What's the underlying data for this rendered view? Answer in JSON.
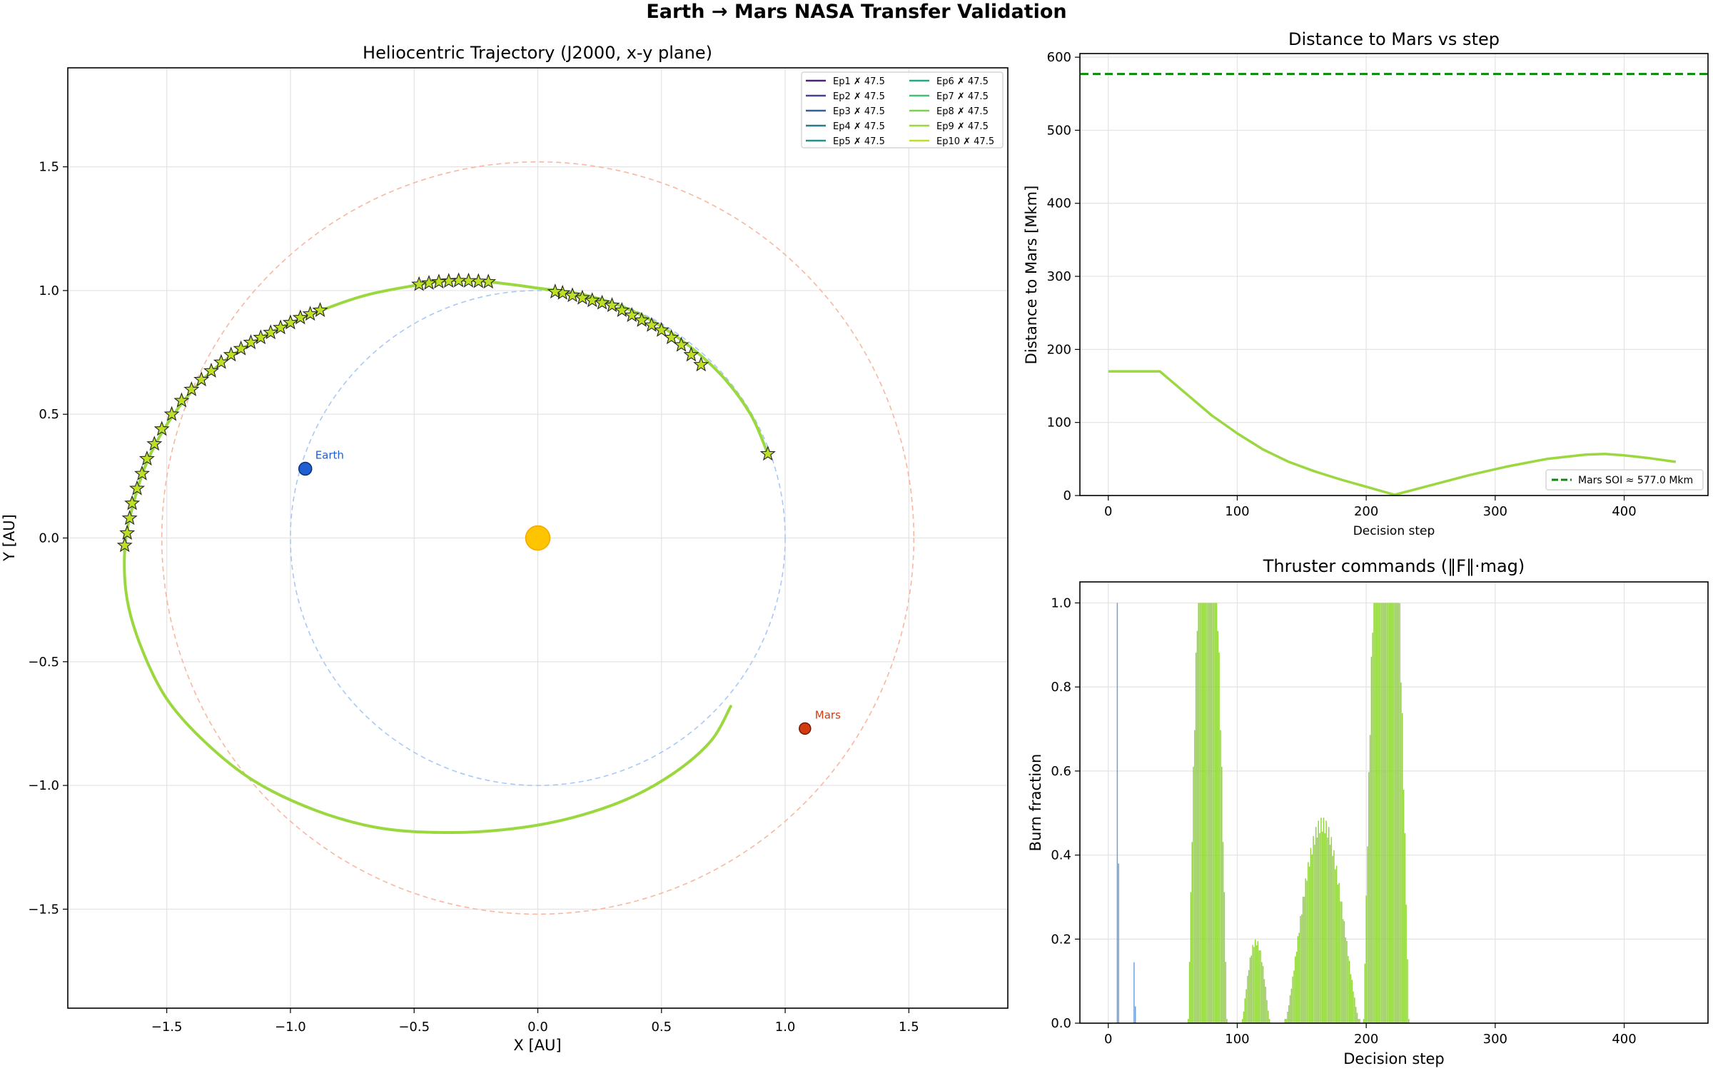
{
  "figure": {
    "suptitle": "Earth → Mars NASA Transfer Validation"
  },
  "colors": {
    "trajectory": "#9bd83f",
    "earth_orbit": "#a9c8f5",
    "mars_orbit": "#f7b7a0",
    "sun": "#ffc400",
    "earth": "#1f5fd1",
    "mars": "#d23a10",
    "soi": "#0a8a0a",
    "burn_blue": "#6a9ed8",
    "burn_green": "#8fd23a"
  },
  "chart_data": [
    {
      "id": "trajectory",
      "type": "line",
      "title": "Heliocentric Trajectory  (J2000, x-y plane)",
      "xlabel": "X  [AU]",
      "ylabel": "Y  [AU]",
      "xlim": [
        -1.9,
        1.9
      ],
      "ylim": [
        -1.9,
        1.9
      ],
      "xticks": [
        -1.5,
        -1.0,
        -0.5,
        0.0,
        0.5,
        1.0,
        1.5
      ],
      "yticks": [
        -1.5,
        -1.0,
        -0.5,
        0.0,
        0.5,
        1.0,
        1.5
      ],
      "grid": true,
      "legend_placement": "top-right",
      "legend": [
        {
          "label": "Ep1 ✗  47.5",
          "color": "#482475"
        },
        {
          "label": "Ep2 ✗  47.5",
          "color": "#414487"
        },
        {
          "label": "Ep3 ✗  47.5",
          "color": "#355f8d"
        },
        {
          "label": "Ep4 ✗  47.5",
          "color": "#2a788e"
        },
        {
          "label": "Ep5 ✗  47.5",
          "color": "#21918c"
        },
        {
          "label": "Ep6 ✗  47.5",
          "color": "#22a884"
        },
        {
          "label": "Ep7 ✗  47.5",
          "color": "#44bf70"
        },
        {
          "label": "Ep8 ✗  47.5",
          "color": "#7ad151"
        },
        {
          "label": "Ep9 ✗  47.5",
          "color": "#9bd83f"
        },
        {
          "label": "Ep10 ✗  47.5",
          "color": "#bddf26"
        }
      ],
      "earth_orbit_radius": 1.0,
      "mars_orbit_radius": 1.52,
      "sun": {
        "x": 0.0,
        "y": 0.0
      },
      "earth": {
        "x": -0.94,
        "y": 0.28,
        "label": "Earth"
      },
      "mars": {
        "x": 1.08,
        "y": -0.77,
        "label": "Mars"
      },
      "path": [
        {
          "x": 0.93,
          "y": 0.34
        },
        {
          "x": 0.86,
          "y": 0.5
        },
        {
          "x": 0.74,
          "y": 0.66
        },
        {
          "x": 0.58,
          "y": 0.8
        },
        {
          "x": 0.4,
          "y": 0.91
        },
        {
          "x": 0.2,
          "y": 0.98
        },
        {
          "x": 0.0,
          "y": 1.01
        },
        {
          "x": -0.2,
          "y": 1.035
        },
        {
          "x": -0.35,
          "y": 1.04
        },
        {
          "x": -0.5,
          "y": 1.02
        },
        {
          "x": -0.7,
          "y": 0.98
        },
        {
          "x": -0.9,
          "y": 0.91
        },
        {
          "x": -1.1,
          "y": 0.82
        },
        {
          "x": -1.3,
          "y": 0.69
        },
        {
          "x": -1.45,
          "y": 0.53
        },
        {
          "x": -1.57,
          "y": 0.33
        },
        {
          "x": -1.64,
          "y": 0.12
        },
        {
          "x": -1.67,
          "y": -0.05
        },
        {
          "x": -1.66,
          "y": -0.25
        },
        {
          "x": -1.6,
          "y": -0.45
        },
        {
          "x": -1.5,
          "y": -0.65
        },
        {
          "x": -1.35,
          "y": -0.82
        },
        {
          "x": -1.15,
          "y": -0.98
        },
        {
          "x": -0.9,
          "y": -1.1
        },
        {
          "x": -0.65,
          "y": -1.17
        },
        {
          "x": -0.4,
          "y": -1.19
        },
        {
          "x": -0.15,
          "y": -1.18
        },
        {
          "x": 0.1,
          "y": -1.14
        },
        {
          "x": 0.35,
          "y": -1.06
        },
        {
          "x": 0.55,
          "y": -0.95
        },
        {
          "x": 0.7,
          "y": -0.82
        },
        {
          "x": 0.78,
          "y": -0.68
        }
      ],
      "star_markers": [
        {
          "x": 0.93,
          "y": 0.34
        },
        {
          "x": 0.66,
          "y": 0.7
        },
        {
          "x": 0.62,
          "y": 0.74
        },
        {
          "x": 0.58,
          "y": 0.78
        },
        {
          "x": 0.54,
          "y": 0.81
        },
        {
          "x": 0.5,
          "y": 0.84
        },
        {
          "x": 0.46,
          "y": 0.86
        },
        {
          "x": 0.42,
          "y": 0.88
        },
        {
          "x": 0.38,
          "y": 0.9
        },
        {
          "x": 0.34,
          "y": 0.92
        },
        {
          "x": 0.3,
          "y": 0.94
        },
        {
          "x": 0.26,
          "y": 0.95
        },
        {
          "x": 0.22,
          "y": 0.96
        },
        {
          "x": 0.18,
          "y": 0.97
        },
        {
          "x": 0.14,
          "y": 0.98
        },
        {
          "x": 0.1,
          "y": 0.99
        },
        {
          "x": 0.07,
          "y": 0.995
        },
        {
          "x": -0.2,
          "y": 1.035
        },
        {
          "x": -0.24,
          "y": 1.037
        },
        {
          "x": -0.28,
          "y": 1.039
        },
        {
          "x": -0.32,
          "y": 1.04
        },
        {
          "x": -0.36,
          "y": 1.038
        },
        {
          "x": -0.4,
          "y": 1.035
        },
        {
          "x": -0.44,
          "y": 1.03
        },
        {
          "x": -0.48,
          "y": 1.025
        },
        {
          "x": -0.88,
          "y": 0.92
        },
        {
          "x": -0.92,
          "y": 0.905
        },
        {
          "x": -0.96,
          "y": 0.89
        },
        {
          "x": -1.0,
          "y": 0.87
        },
        {
          "x": -1.04,
          "y": 0.85
        },
        {
          "x": -1.08,
          "y": 0.83
        },
        {
          "x": -1.12,
          "y": 0.81
        },
        {
          "x": -1.16,
          "y": 0.79
        },
        {
          "x": -1.2,
          "y": 0.765
        },
        {
          "x": -1.24,
          "y": 0.74
        },
        {
          "x": -1.28,
          "y": 0.71
        },
        {
          "x": -1.32,
          "y": 0.675
        },
        {
          "x": -1.36,
          "y": 0.64
        },
        {
          "x": -1.4,
          "y": 0.6
        },
        {
          "x": -1.44,
          "y": 0.555
        },
        {
          "x": -1.48,
          "y": 0.5
        },
        {
          "x": -1.52,
          "y": 0.44
        },
        {
          "x": -1.55,
          "y": 0.38
        },
        {
          "x": -1.58,
          "y": 0.32
        },
        {
          "x": -1.6,
          "y": 0.26
        },
        {
          "x": -1.62,
          "y": 0.2
        },
        {
          "x": -1.64,
          "y": 0.14
        },
        {
          "x": -1.65,
          "y": 0.08
        },
        {
          "x": -1.66,
          "y": 0.02
        },
        {
          "x": -1.67,
          "y": -0.03
        }
      ]
    },
    {
      "id": "distance",
      "type": "line",
      "title": "Distance to Mars vs step",
      "xlabel": "Decision step",
      "ylabel": "Distance to Mars  [Mkm]",
      "xlim": [
        -22,
        465
      ],
      "ylim": [
        0,
        605
      ],
      "xticks": [
        0,
        100,
        200,
        300,
        400
      ],
      "yticks": [
        0,
        100,
        200,
        300,
        400,
        500,
        600
      ],
      "grid": true,
      "legend_placement": "bottom-right",
      "soi": {
        "value": 577.0,
        "label": "Mars SOI ≈ 577.0 Mkm"
      },
      "series": [
        {
          "x": [
            0,
            40,
            60,
            80,
            100,
            120,
            140,
            160,
            180,
            200,
            222,
            250,
            280,
            310,
            340,
            370,
            385,
            400,
            420,
            440
          ],
          "values": [
            170,
            170,
            140,
            110,
            85,
            63,
            46,
            33,
            22,
            12,
            1,
            14,
            28,
            40,
            50,
            56,
            57,
            55,
            51,
            46
          ]
        }
      ]
    },
    {
      "id": "thruster",
      "type": "bar",
      "title": "Thruster commands (‖F‖·mag)",
      "xlabel": "Decision step",
      "ylabel": "Burn fraction",
      "xlim": [
        -22,
        465
      ],
      "ylim": [
        0,
        1.05
      ],
      "xticks": [
        0,
        100,
        200,
        300,
        400
      ],
      "yticks": [
        0.0,
        0.2,
        0.4,
        0.6,
        0.8,
        1.0
      ],
      "grid": true,
      "blue_bars": [
        {
          "x": 7,
          "value": 1.0
        },
        {
          "x": 8,
          "value": 0.38
        },
        {
          "x": 20,
          "value": 0.145
        },
        {
          "x": 21,
          "value": 0.04
        }
      ],
      "green_segments": [
        {
          "start": 62,
          "end": 92,
          "profile": "sine",
          "peak": 1.5
        },
        {
          "start": 104,
          "end": 125,
          "profile": "sine",
          "peak": 0.2
        },
        {
          "start": 137,
          "end": 195,
          "profile": "hump",
          "peak": 0.49
        },
        {
          "start": 198,
          "end": 233,
          "profile": "sine",
          "peak": 1.7
        }
      ]
    }
  ]
}
